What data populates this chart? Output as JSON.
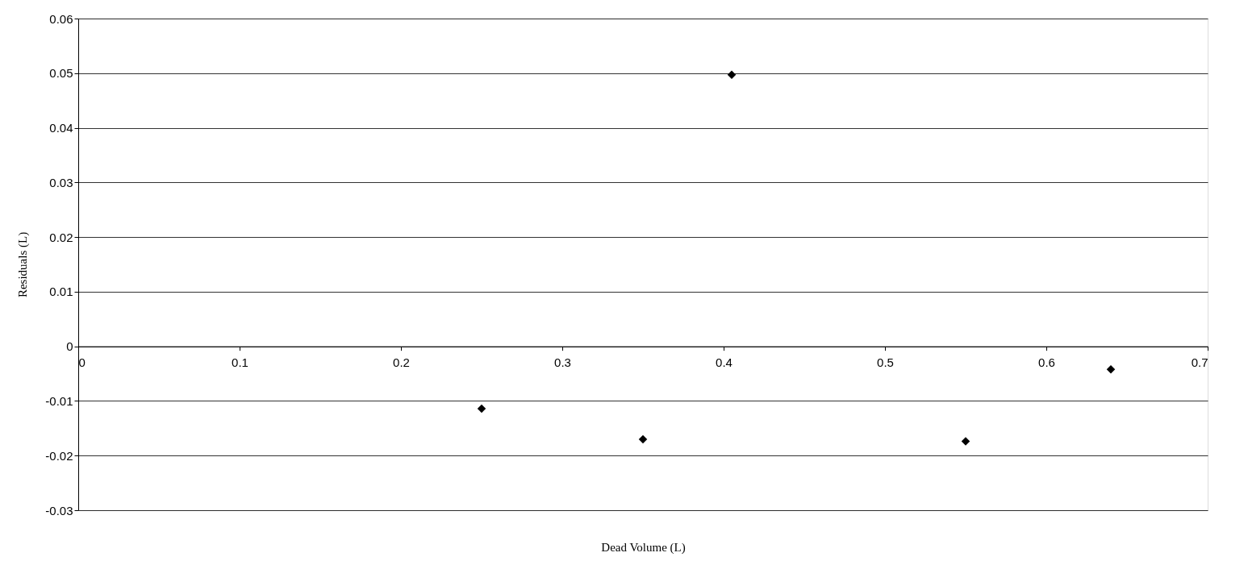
{
  "chart_data": {
    "type": "scatter",
    "xlabel": "Dead Volume (L)",
    "ylabel": "Residuals (L)",
    "x": [
      0.25,
      0.35,
      0.405,
      0.55,
      0.64
    ],
    "series": [
      {
        "color": "#000000",
        "values": [
          -0.0114,
          -0.017,
          0.0497,
          -0.0174,
          -0.0042
        ]
      }
    ],
    "xlim": [
      0,
      0.7
    ],
    "xticks": [
      0,
      0.1,
      0.2,
      0.3,
      0.4,
      0.5,
      0.6,
      0.7
    ],
    "ylim": [
      -0.03,
      0.06
    ],
    "yticks": [
      -0.03,
      -0.02,
      -0.01,
      0,
      0.01,
      0.02,
      0.03,
      0.04,
      0.05,
      0.06
    ],
    "grid": "y",
    "marker": "diamond"
  }
}
